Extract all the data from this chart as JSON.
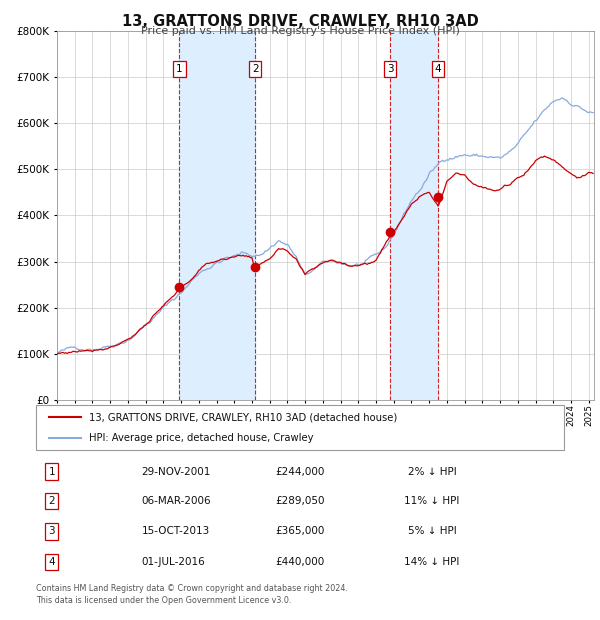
{
  "title": "13, GRATTONS DRIVE, CRAWLEY, RH10 3AD",
  "subtitle": "Price paid vs. HM Land Registry's House Price Index (HPI)",
  "property_label": "13, GRATTONS DRIVE, CRAWLEY, RH10 3AD (detached house)",
  "hpi_label": "HPI: Average price, detached house, Crawley",
  "footer": "Contains HM Land Registry data © Crown copyright and database right 2024.\nThis data is licensed under the Open Government Licence v3.0.",
  "purchases": [
    {
      "num": 1,
      "date": "29-NOV-2001",
      "price": 244000,
      "year": 2001.91,
      "hpi_pct": "2% ↓ HPI"
    },
    {
      "num": 2,
      "date": "06-MAR-2006",
      "price": 289050,
      "year": 2006.18,
      "hpi_pct": "11% ↓ HPI"
    },
    {
      "num": 3,
      "date": "15-OCT-2013",
      "price": 365000,
      "year": 2013.79,
      "hpi_pct": "5% ↓ HPI"
    },
    {
      "num": 4,
      "date": "01-JUL-2016",
      "price": 440000,
      "year": 2016.5,
      "hpi_pct": "14% ↓ HPI"
    }
  ],
  "property_line_color": "#cc0000",
  "hpi_line_color": "#88aadd",
  "shade_color": "#ddeeff",
  "vline_color": "#cc0000",
  "grid_color": "#cccccc",
  "ylim": [
    0,
    800000
  ],
  "xlim_start": 1995.0,
  "xlim_end": 2025.3,
  "bg_color": "#ffffff",
  "hpi_anchors": [
    [
      1995.0,
      103000
    ],
    [
      1996.0,
      109000
    ],
    [
      1997.0,
      116000
    ],
    [
      1998.0,
      128000
    ],
    [
      1999.0,
      148000
    ],
    [
      2000.0,
      182000
    ],
    [
      2001.0,
      215000
    ],
    [
      2002.0,
      250000
    ],
    [
      2002.5,
      270000
    ],
    [
      2003.0,
      293000
    ],
    [
      2003.5,
      308000
    ],
    [
      2004.0,
      318000
    ],
    [
      2004.5,
      328000
    ],
    [
      2005.0,
      330000
    ],
    [
      2005.5,
      335000
    ],
    [
      2006.0,
      332000
    ],
    [
      2006.5,
      335000
    ],
    [
      2007.0,
      350000
    ],
    [
      2007.5,
      368000
    ],
    [
      2008.0,
      358000
    ],
    [
      2008.5,
      330000
    ],
    [
      2009.0,
      285000
    ],
    [
      2009.5,
      300000
    ],
    [
      2010.0,
      308000
    ],
    [
      2010.5,
      312000
    ],
    [
      2011.0,
      308000
    ],
    [
      2011.5,
      305000
    ],
    [
      2012.0,
      305000
    ],
    [
      2012.5,
      308000
    ],
    [
      2013.0,
      315000
    ],
    [
      2013.5,
      328000
    ],
    [
      2014.0,
      360000
    ],
    [
      2014.5,
      398000
    ],
    [
      2015.0,
      435000
    ],
    [
      2015.5,
      460000
    ],
    [
      2016.0,
      490000
    ],
    [
      2016.5,
      510000
    ],
    [
      2017.0,
      528000
    ],
    [
      2017.5,
      535000
    ],
    [
      2018.0,
      540000
    ],
    [
      2018.5,
      538000
    ],
    [
      2019.0,
      535000
    ],
    [
      2019.5,
      535000
    ],
    [
      2020.0,
      530000
    ],
    [
      2020.5,
      540000
    ],
    [
      2021.0,
      555000
    ],
    [
      2021.5,
      575000
    ],
    [
      2022.0,
      598000
    ],
    [
      2022.5,
      618000
    ],
    [
      2023.0,
      638000
    ],
    [
      2023.5,
      648000
    ],
    [
      2024.0,
      640000
    ],
    [
      2024.5,
      632000
    ],
    [
      2025.0,
      622000
    ],
    [
      2025.3,
      618000
    ]
  ],
  "prop_anchors": [
    [
      1995.0,
      100000
    ],
    [
      1996.0,
      106000
    ],
    [
      1997.0,
      113000
    ],
    [
      1998.0,
      125000
    ],
    [
      1999.0,
      145000
    ],
    [
      2000.0,
      178000
    ],
    [
      2001.0,
      212000
    ],
    [
      2001.91,
      244000
    ],
    [
      2002.5,
      265000
    ],
    [
      2003.0,
      285000
    ],
    [
      2003.5,
      300000
    ],
    [
      2004.0,
      308000
    ],
    [
      2004.5,
      315000
    ],
    [
      2005.0,
      318000
    ],
    [
      2005.5,
      322000
    ],
    [
      2006.0,
      320000
    ],
    [
      2006.18,
      289050
    ],
    [
      2006.5,
      302000
    ],
    [
      2007.0,
      318000
    ],
    [
      2007.5,
      338000
    ],
    [
      2008.0,
      328000
    ],
    [
      2008.5,
      305000
    ],
    [
      2009.0,
      268000
    ],
    [
      2009.5,
      280000
    ],
    [
      2010.0,
      295000
    ],
    [
      2010.5,
      300000
    ],
    [
      2011.0,
      298000
    ],
    [
      2011.5,
      295000
    ],
    [
      2012.0,
      298000
    ],
    [
      2012.5,
      300000
    ],
    [
      2013.0,
      308000
    ],
    [
      2013.79,
      365000
    ],
    [
      2014.0,
      375000
    ],
    [
      2014.5,
      398000
    ],
    [
      2015.0,
      435000
    ],
    [
      2015.5,
      455000
    ],
    [
      2016.0,
      470000
    ],
    [
      2016.5,
      440000
    ],
    [
      2016.8,
      465000
    ],
    [
      2017.0,
      490000
    ],
    [
      2017.5,
      512000
    ],
    [
      2018.0,
      510000
    ],
    [
      2018.5,
      495000
    ],
    [
      2019.0,
      488000
    ],
    [
      2019.5,
      480000
    ],
    [
      2020.0,
      478000
    ],
    [
      2020.5,
      488000
    ],
    [
      2021.0,
      502000
    ],
    [
      2021.5,
      520000
    ],
    [
      2022.0,
      545000
    ],
    [
      2022.5,
      555000
    ],
    [
      2023.0,
      548000
    ],
    [
      2023.5,
      535000
    ],
    [
      2024.0,
      522000
    ],
    [
      2024.5,
      515000
    ],
    [
      2025.0,
      520000
    ],
    [
      2025.3,
      518000
    ]
  ]
}
